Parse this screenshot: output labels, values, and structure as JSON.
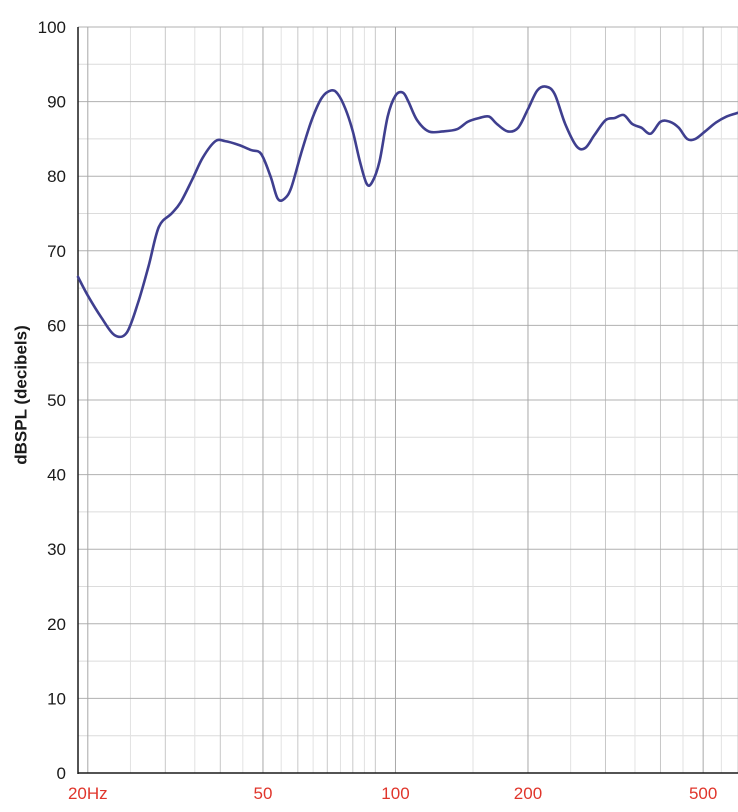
{
  "chart_data": {
    "type": "line",
    "title": "",
    "xlabel": "",
    "ylabel": "dBSPL (decibels)",
    "x_scale": "log",
    "xlim": [
      19,
      600
    ],
    "ylim": [
      0,
      100
    ],
    "y_ticks": [
      0,
      10,
      20,
      30,
      40,
      50,
      60,
      70,
      80,
      90,
      100
    ],
    "x_tick_values": [
      20,
      50,
      100,
      200,
      500
    ],
    "x_tick_labels": [
      "20Hz",
      "50",
      "100",
      "200",
      "500"
    ],
    "x_tick_color": "#e0352b",
    "line_color": "#3f3f8f",
    "grid": true,
    "legend": "none",
    "series": [
      {
        "x": [
          19.0,
          20.0,
          21.5,
          23.0,
          24.5,
          26.0,
          27.5,
          29.0,
          31.0,
          32.5,
          34.5,
          36.5,
          39.0,
          41.0,
          44.0,
          47.0,
          49.5,
          52.0,
          54.0,
          56.0,
          58.0,
          61.0,
          64.5,
          68.0,
          71.5,
          74.0,
          77.0,
          80.0,
          83.0,
          86.0,
          88.5,
          92.0,
          96.0,
          100.0,
          104.0,
          107.0,
          112.0,
          119.0,
          128.0,
          138.0,
          146.0,
          155.0,
          163.0,
          170.0,
          180.0,
          190.0,
          200.0,
          210.0,
          220.0,
          230.0,
          243.0,
          258.0,
          270.0,
          283.0,
          300.0,
          315.0,
          330.0,
          345.0,
          362.0,
          380.0,
          400.0,
          420.0,
          440.0,
          460.0,
          480.0,
          505.0,
          535.0,
          565.0,
          600.0
        ],
        "y": [
          66.5,
          64.0,
          61.0,
          58.7,
          59.0,
          63.0,
          68.0,
          73.2,
          75.0,
          76.5,
          79.5,
          82.5,
          84.7,
          84.7,
          84.2,
          83.5,
          83.0,
          80.0,
          77.0,
          77.0,
          78.5,
          83.0,
          87.5,
          90.5,
          91.5,
          91.0,
          89.0,
          86.0,
          82.0,
          79.0,
          79.2,
          82.0,
          88.0,
          90.8,
          91.2,
          90.0,
          87.5,
          86.0,
          86.0,
          86.3,
          87.3,
          87.8,
          88.0,
          87.0,
          86.0,
          86.5,
          89.0,
          91.5,
          92.0,
          91.0,
          87.0,
          84.0,
          83.8,
          85.5,
          87.5,
          87.8,
          88.2,
          87.0,
          86.5,
          85.7,
          87.3,
          87.3,
          86.5,
          85.0,
          85.0,
          86.0,
          87.2,
          88.0,
          88.5
        ]
      }
    ]
  }
}
